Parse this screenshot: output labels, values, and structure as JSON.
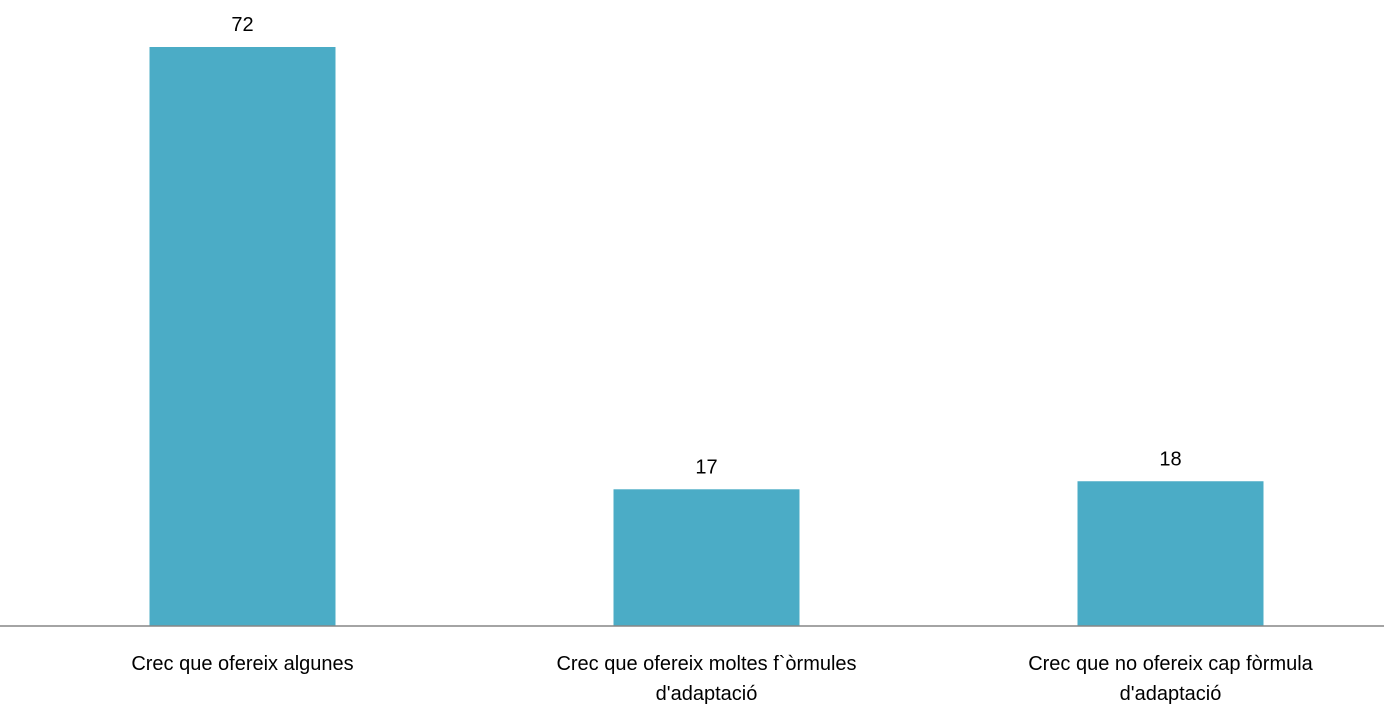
{
  "chart_data": {
    "type": "bar",
    "title": "",
    "xlabel": "",
    "ylabel": "",
    "categories": [
      [
        "Crec que ofereix algunes"
      ],
      [
        "Crec que ofereix moltes f`òrmules",
        "d'adaptació"
      ],
      [
        "Crec que no ofereix cap fòrmula",
        "d'adaptació"
      ]
    ],
    "values": [
      72,
      17,
      18
    ],
    "value_labels": [
      "72",
      "17",
      "18"
    ],
    "ylim": [
      0,
      75
    ],
    "grid": false,
    "legend": "none",
    "colors": {
      "bar": "#4BACC6",
      "axis": "#868686",
      "text": "#000000"
    }
  }
}
